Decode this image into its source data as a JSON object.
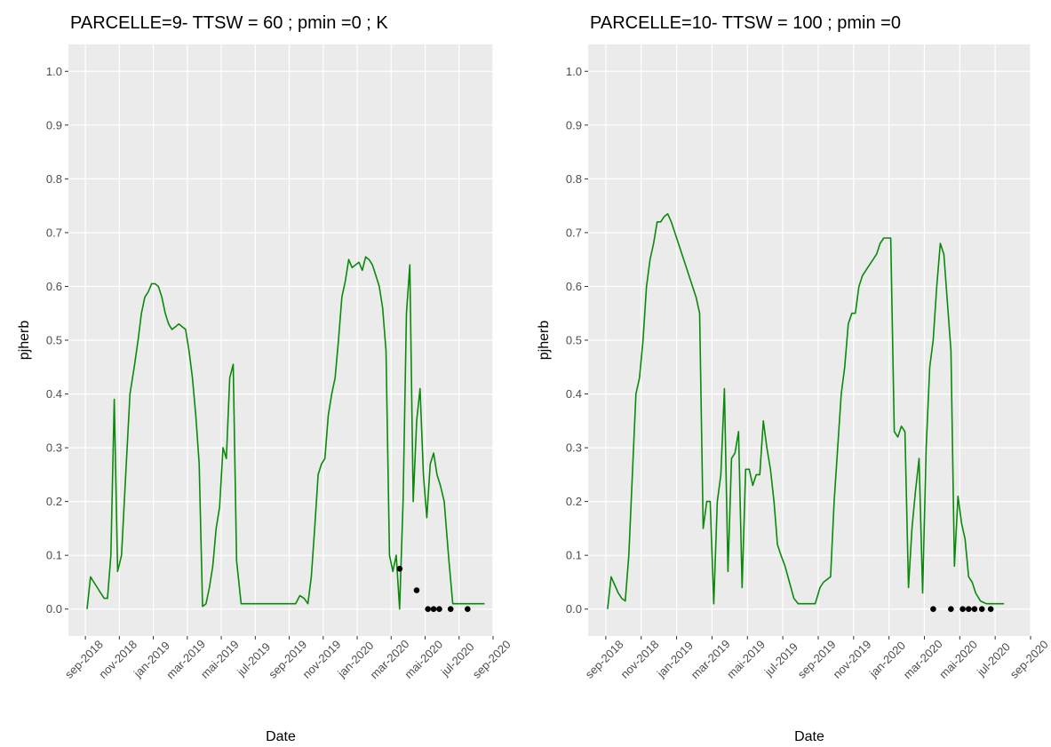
{
  "chart_data": [
    {
      "type": "line",
      "title": "PARCELLE=9- TTSW = 60 ; pmin =0 ; K",
      "x_label": "Date",
      "y_label": "pjherb",
      "xlim": [
        "2018-08",
        "2020-09"
      ],
      "xticks": [
        {
          "value": "2018-09",
          "label": "sep-2018"
        },
        {
          "value": "2018-11",
          "label": "nov-2018"
        },
        {
          "value": "2019-01",
          "label": "jan-2019"
        },
        {
          "value": "2019-03",
          "label": "mar-2019"
        },
        {
          "value": "2019-05",
          "label": "mai-2019"
        },
        {
          "value": "2019-07",
          "label": "jul-2019"
        },
        {
          "value": "2019-09",
          "label": "sep-2019"
        },
        {
          "value": "2019-11",
          "label": "nov-2019"
        },
        {
          "value": "2020-01",
          "label": "jan-2020"
        },
        {
          "value": "2020-03",
          "label": "mar-2020"
        },
        {
          "value": "2020-05",
          "label": "mai-2020"
        },
        {
          "value": "2020-07",
          "label": "jul-2020"
        },
        {
          "value": "2020-09",
          "label": "sep-2020"
        }
      ],
      "ylim": [
        -0.05,
        1.05
      ],
      "yticks": [
        {
          "value": 0,
          "label": "0.0"
        },
        0.1,
        0.2,
        0.3,
        0.4,
        0.5,
        0.6,
        0.7,
        0.8,
        0.9,
        {
          "value": 1,
          "label": "1.0"
        }
      ],
      "grid": true,
      "series": [
        {
          "style": "line",
          "color": "#0a8a0a",
          "x": [
            "2018-09",
            "2018-09",
            "2018-09",
            "2018-09",
            "2018-09",
            "2018-10",
            "2018-10",
            "2018-10",
            "2018-10",
            "2018-10",
            "2018-11",
            "2018-11",
            "2018-11",
            "2018-11",
            "2018-12",
            "2018-12",
            "2018-12",
            "2018-12",
            "2018-12",
            "2019-01",
            "2019-01",
            "2019-01",
            "2019-01",
            "2019-01",
            "2019-02",
            "2019-02",
            "2019-02",
            "2019-02",
            "2019-02",
            "2019-03",
            "2019-03",
            "2019-03",
            "2019-03",
            "2019-03",
            "2019-04",
            "2019-04",
            "2019-04",
            "2019-04",
            "2019-04",
            "2019-05",
            "2019-05",
            "2019-05",
            "2019-05",
            "2019-05",
            "2019-06",
            "2019-06",
            "2019-06",
            "2019-07",
            "2019-08",
            "2019-09",
            "2019-09",
            "2019-09",
            "2019-09",
            "2019-10",
            "2019-10",
            "2019-10",
            "2019-10",
            "2019-10",
            "2019-11",
            "2019-11",
            "2019-11",
            "2019-11",
            "2019-11",
            "2019-12",
            "2019-12",
            "2019-12",
            "2019-12",
            "2019-12",
            "2020-01",
            "2020-01",
            "2020-01",
            "2020-01",
            "2020-01",
            "2020-02",
            "2020-02",
            "2020-02",
            "2020-02",
            "2020-02",
            "2020-03",
            "2020-03",
            "2020-03",
            "2020-03",
            "2020-03",
            "2020-04",
            "2020-04",
            "2020-04",
            "2020-04",
            "2020-04",
            "2020-05",
            "2020-05",
            "2020-05",
            "2020-05",
            "2020-05",
            "2020-06",
            "2020-06",
            "2020-06",
            "2020-06",
            "2020-07",
            "2020-07",
            "2020-08"
          ],
          "values": [
            0.0,
            0.06,
            0.05,
            0.04,
            0.03,
            0.02,
            0.02,
            0.1,
            0.39,
            0.07,
            0.1,
            0.25,
            0.4,
            0.45,
            0.5,
            0.55,
            0.58,
            0.59,
            0.605,
            0.605,
            0.6,
            0.58,
            0.55,
            0.53,
            0.52,
            0.525,
            0.53,
            0.525,
            0.52,
            0.48,
            0.43,
            0.36,
            0.27,
            0.005,
            0.01,
            0.04,
            0.08,
            0.15,
            0.19,
            0.3,
            0.28,
            0.43,
            0.455,
            0.09,
            0.01,
            0.01,
            0.01,
            0.01,
            0.01,
            0.01,
            0.01,
            0.025,
            0.02,
            0.01,
            0.06,
            0.15,
            0.25,
            0.27,
            0.28,
            0.36,
            0.4,
            0.43,
            0.5,
            0.58,
            0.61,
            0.65,
            0.635,
            0.64,
            0.645,
            0.63,
            0.655,
            0.65,
            0.64,
            0.62,
            0.6,
            0.56,
            0.48,
            0.1,
            0.07,
            0.1,
            0.0,
            0.2,
            0.55,
            0.64,
            0.2,
            0.35,
            0.41,
            0.25,
            0.17,
            0.27,
            0.29,
            0.25,
            0.23,
            0.2,
            0.1,
            0.01,
            0.01,
            0.01,
            0.01,
            0.01
          ]
        },
        {
          "style": "points",
          "color": "#000000",
          "x": [
            "2020-03",
            "2020-04",
            "2020-05",
            "2020-05",
            "2020-05",
            "2020-06",
            "2020-07"
          ],
          "values": [
            0.075,
            0.035,
            0,
            0,
            0,
            0,
            0
          ]
        }
      ]
    },
    {
      "type": "line",
      "title": "PARCELLE=10- TTSW = 100 ; pmin =0",
      "x_label": "Date",
      "y_label": "pjherb",
      "xlim": [
        "2018-08",
        "2020-09"
      ],
      "xticks": [
        {
          "value": "2018-09",
          "label": "sep-2018"
        },
        {
          "value": "2018-11",
          "label": "nov-2018"
        },
        {
          "value": "2019-01",
          "label": "jan-2019"
        },
        {
          "value": "2019-03",
          "label": "mar-2019"
        },
        {
          "value": "2019-05",
          "label": "mai-2019"
        },
        {
          "value": "2019-07",
          "label": "jul-2019"
        },
        {
          "value": "2019-09",
          "label": "sep-2019"
        },
        {
          "value": "2019-11",
          "label": "nov-2019"
        },
        {
          "value": "2020-01",
          "label": "jan-2020"
        },
        {
          "value": "2020-03",
          "label": "mar-2020"
        },
        {
          "value": "2020-05",
          "label": "mai-2020"
        },
        {
          "value": "2020-07",
          "label": "jul-2020"
        },
        {
          "value": "2020-09",
          "label": "sep-2020"
        }
      ],
      "ylim": [
        -0.05,
        1.05
      ],
      "yticks": [
        {
          "value": 0,
          "label": "0.0"
        },
        0.1,
        0.2,
        0.3,
        0.4,
        0.5,
        0.6,
        0.7,
        0.8,
        0.9,
        {
          "value": 1,
          "label": "1.0"
        }
      ],
      "grid": true,
      "series": [
        {
          "style": "line",
          "color": "#0a8a0a",
          "x": [
            "2018-09",
            "2018-09",
            "2018-09",
            "2018-09",
            "2018-09",
            "2018-10",
            "2018-10",
            "2018-10",
            "2018-10",
            "2018-10",
            "2018-11",
            "2018-11",
            "2018-11",
            "2018-11",
            "2018-11",
            "2018-12",
            "2018-12",
            "2018-12",
            "2018-12",
            "2018-12",
            "2019-01",
            "2019-01",
            "2019-01",
            "2019-01",
            "2019-01",
            "2019-02",
            "2019-02",
            "2019-02",
            "2019-02",
            "2019-02",
            "2019-03",
            "2019-03",
            "2019-03",
            "2019-03",
            "2019-03",
            "2019-04",
            "2019-04",
            "2019-04",
            "2019-04",
            "2019-04",
            "2019-05",
            "2019-05",
            "2019-05",
            "2019-05",
            "2019-05",
            "2019-06",
            "2019-06",
            "2019-06",
            "2019-06",
            "2019-06",
            "2019-07",
            "2019-07",
            "2019-07",
            "2019-07",
            "2019-08",
            "2019-08",
            "2019-08",
            "2019-09",
            "2019-09",
            "2019-09",
            "2019-09",
            "2019-09",
            "2019-10",
            "2019-10",
            "2019-10",
            "2019-10",
            "2019-10",
            "2019-11",
            "2019-11",
            "2019-11",
            "2019-11",
            "2019-11",
            "2019-12",
            "2019-12",
            "2019-12",
            "2019-12",
            "2019-12",
            "2020-01",
            "2020-01",
            "2020-01",
            "2020-01",
            "2020-01",
            "2020-02",
            "2020-02",
            "2020-02",
            "2020-02",
            "2020-02",
            "2020-03",
            "2020-03",
            "2020-03",
            "2020-03",
            "2020-03",
            "2020-04",
            "2020-04",
            "2020-04",
            "2020-04",
            "2020-04",
            "2020-05",
            "2020-05",
            "2020-05",
            "2020-05",
            "2020-05",
            "2020-06",
            "2020-06",
            "2020-06",
            "2020-07"
          ],
          "values": [
            0.0,
            0.06,
            0.045,
            0.03,
            0.02,
            0.015,
            0.1,
            0.25,
            0.4,
            0.43,
            0.5,
            0.6,
            0.65,
            0.68,
            0.72,
            0.72,
            0.73,
            0.735,
            0.72,
            0.7,
            0.68,
            0.66,
            0.64,
            0.62,
            0.6,
            0.58,
            0.55,
            0.15,
            0.2,
            0.2,
            0.01,
            0.2,
            0.25,
            0.41,
            0.07,
            0.28,
            0.29,
            0.33,
            0.04,
            0.26,
            0.26,
            0.23,
            0.25,
            0.25,
            0.35,
            0.3,
            0.26,
            0.2,
            0.12,
            0.1,
            0.08,
            0.05,
            0.02,
            0.01,
            0.01,
            0.01,
            0.01,
            0.04,
            0.05,
            0.055,
            0.06,
            0.2,
            0.3,
            0.4,
            0.45,
            0.53,
            0.55,
            0.55,
            0.6,
            0.62,
            0.63,
            0.64,
            0.65,
            0.66,
            0.68,
            0.69,
            0.69,
            0.69,
            0.33,
            0.32,
            0.34,
            0.33,
            0.04,
            0.15,
            0.22,
            0.28,
            0.03,
            0.3,
            0.45,
            0.5,
            0.6,
            0.68,
            0.66,
            0.57,
            0.48,
            0.08,
            0.21,
            0.16,
            0.13,
            0.06,
            0.05,
            0.03,
            0.015,
            0.01,
            0.01,
            0.01
          ]
        },
        {
          "style": "points",
          "color": "#000000",
          "x": [
            "2020-03",
            "2020-04",
            "2020-05",
            "2020-05",
            "2020-05",
            "2020-06",
            "2020-06"
          ],
          "values": [
            0,
            0,
            0,
            0,
            0,
            0,
            0
          ]
        }
      ]
    }
  ]
}
